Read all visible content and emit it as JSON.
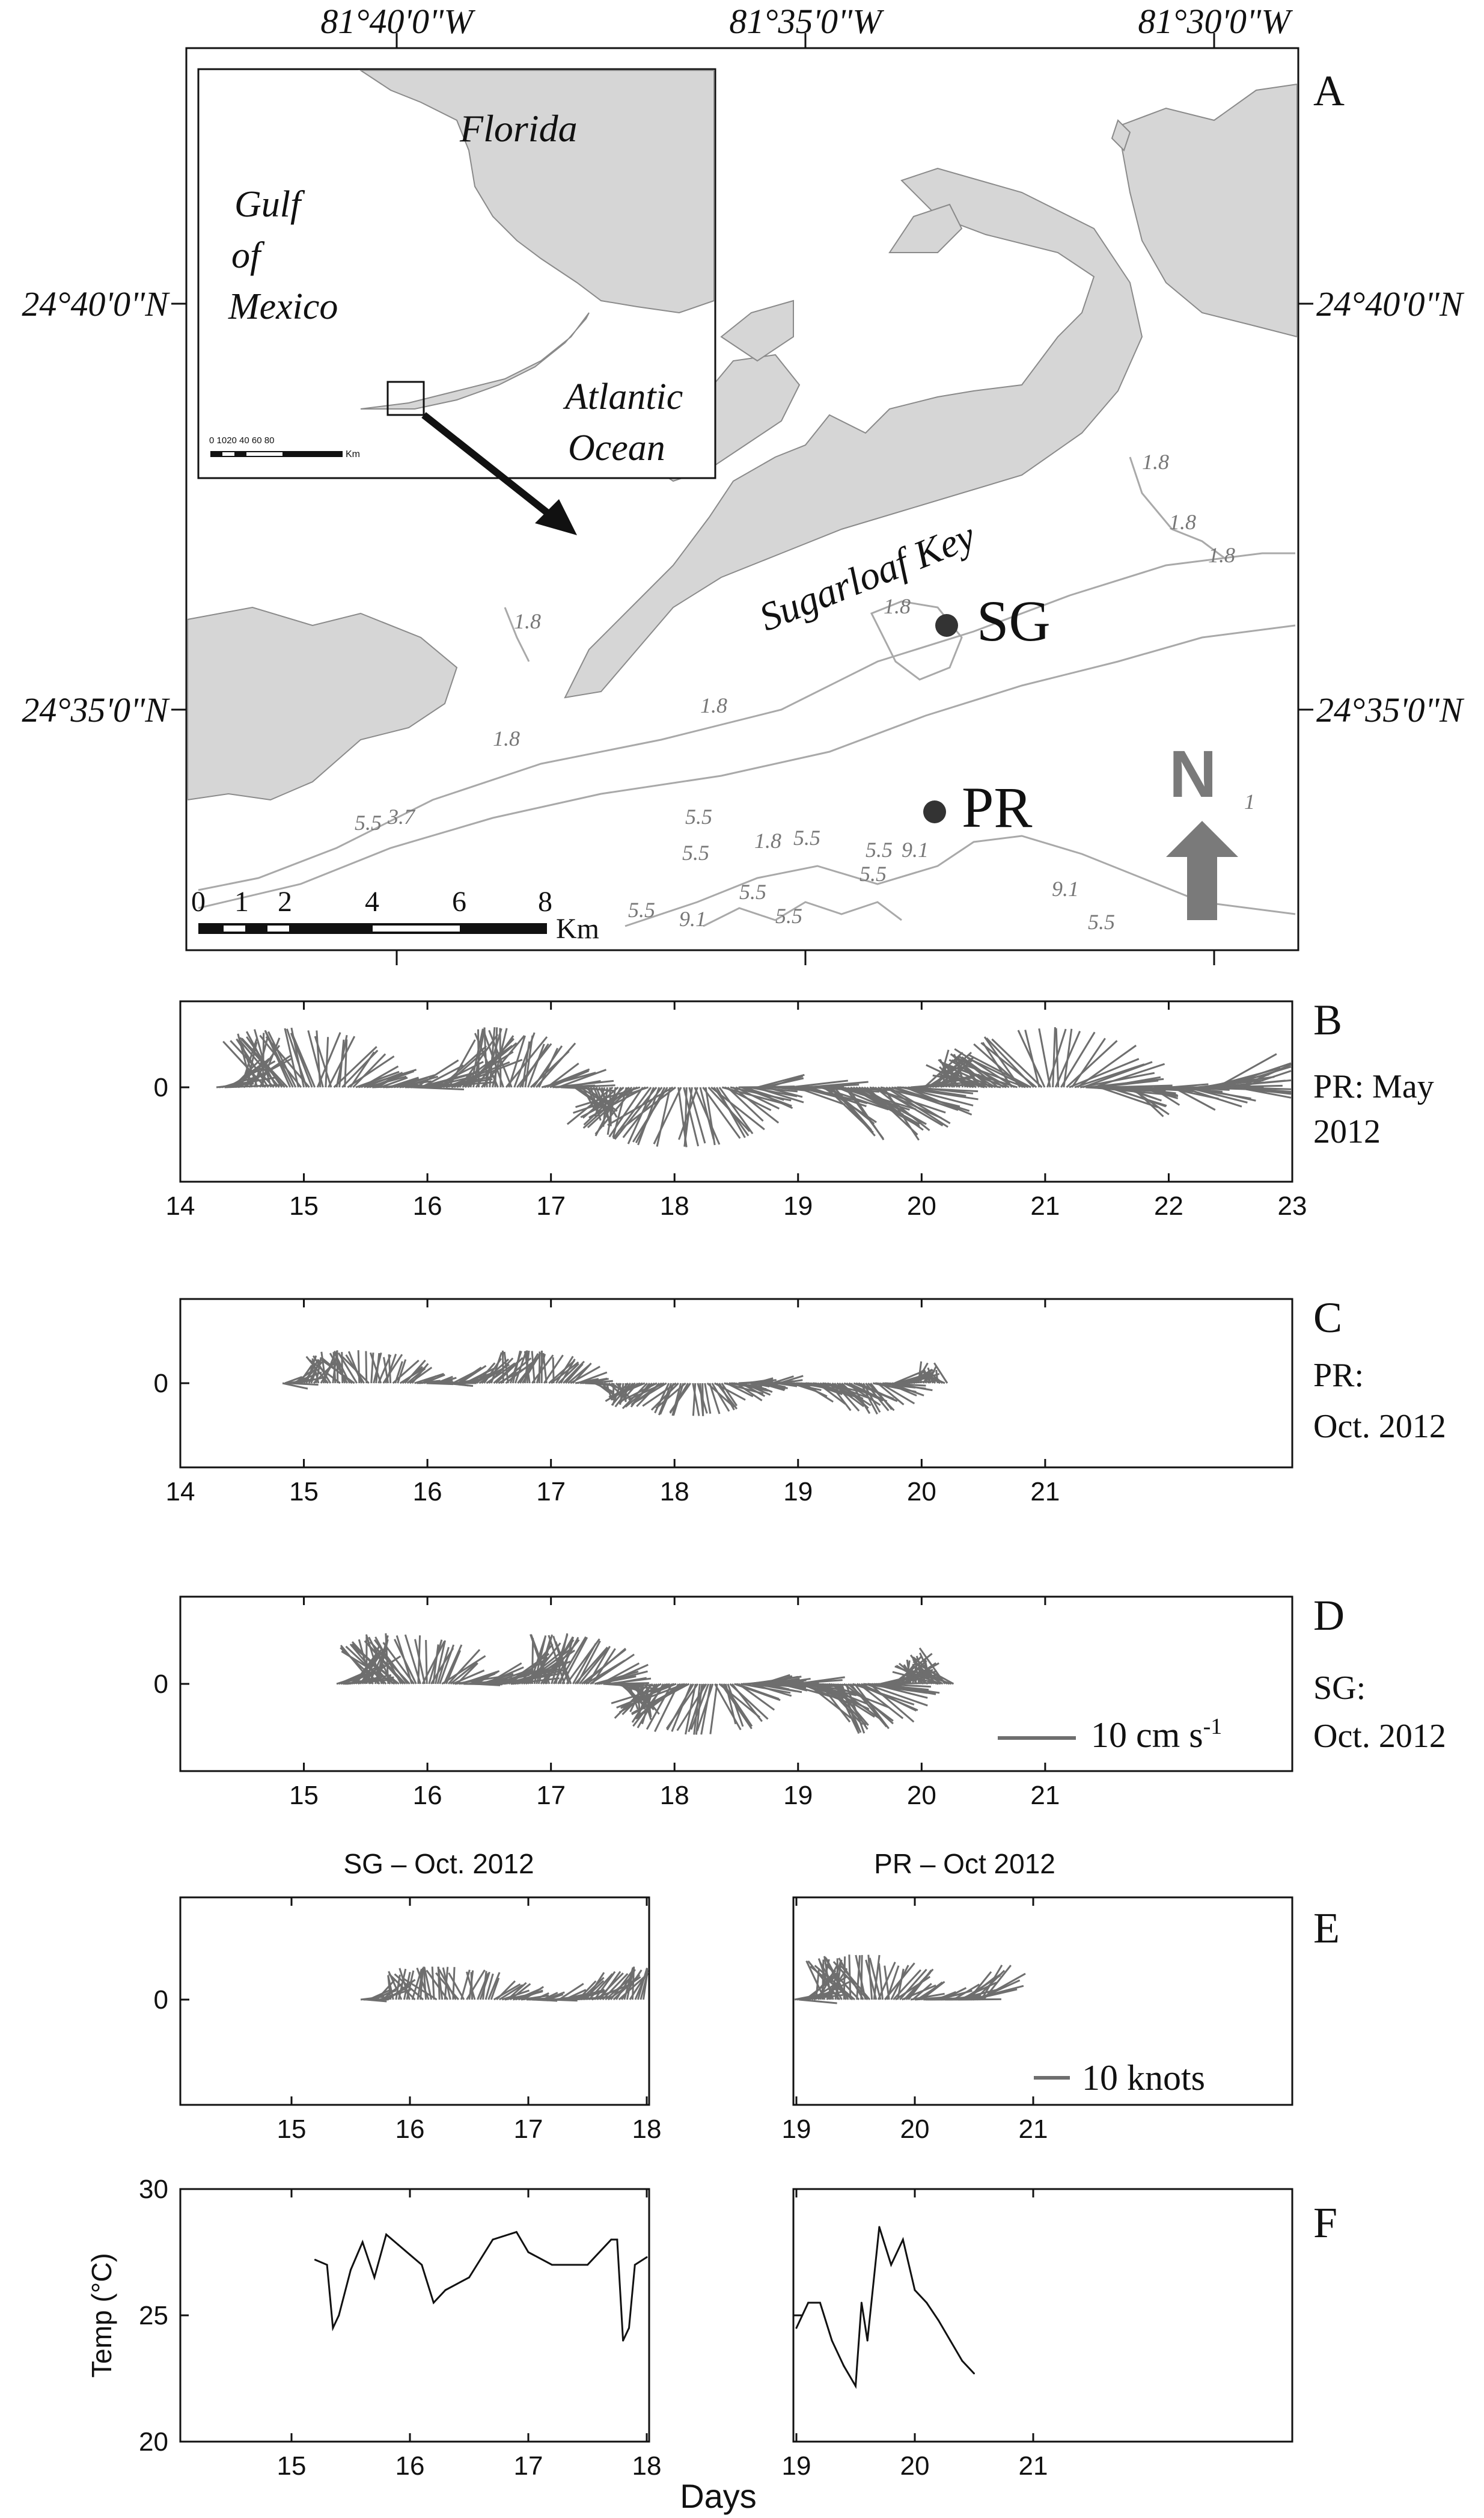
{
  "panel_a": {
    "letter": "A",
    "lon_labels": [
      "81°40'0\"W",
      "81°35'0\"W",
      "81°30'0\"W"
    ],
    "lat_labels": [
      "24°40'0\"N",
      "24°35'0\"N"
    ],
    "inset": {
      "florida": "Florida",
      "gulf_line1": "Gulf",
      "gulf_line2": "of",
      "gulf_line3": "Mexico",
      "atlantic_line1": "Atlantic",
      "atlantic_line2": "Ocean",
      "scale_labels": "0 1020    40    60    80",
      "scale_unit": "Km"
    },
    "sugarloaf": "Sugarloaf Key",
    "site_sg": "SG",
    "site_pr": "PR",
    "north": "N",
    "scale_ticks": [
      "0",
      "1",
      "2",
      "4",
      "6",
      "8"
    ],
    "scale_unit": "Km",
    "contours": [
      "1.8",
      "1.8",
      "1.8",
      "1.8",
      "1.8",
      "1.8",
      "1.8",
      "5.5",
      "3.7",
      "5.5",
      "5.5",
      "5.5",
      "1.8",
      "5.5",
      "5.5",
      "9.1",
      "5.5",
      "9.1",
      "9.1",
      "5.5",
      "1",
      "5.5",
      "5.5"
    ]
  },
  "panel_b": {
    "letter": "B",
    "note_line1": "PR: May",
    "note_line2": "2012",
    "x_ticks": [
      "14",
      "15",
      "16",
      "17",
      "18",
      "19",
      "20",
      "21",
      "22",
      "23"
    ]
  },
  "panel_c": {
    "letter": "C",
    "note_line1": "PR:",
    "note_line2": "Oct. 2012",
    "x_ticks": [
      "14",
      "15",
      "16",
      "17",
      "18",
      "19",
      "20",
      "21"
    ]
  },
  "panel_d": {
    "letter": "D",
    "note_line1": "SG:",
    "note_line2": "Oct. 2012",
    "x_ticks": [
      "15",
      "16",
      "17",
      "18",
      "19",
      "20",
      "21"
    ],
    "legend": "10 cm s",
    "legend_sup": "-1"
  },
  "panel_e": {
    "letter": "E",
    "title_left": "SG – Oct. 2012",
    "title_right": "PR – Oct 2012",
    "x_ticks_left": [
      "15",
      "16",
      "17",
      "18"
    ],
    "x_ticks_right": [
      "19",
      "20",
      "21"
    ],
    "legend": "10 knots"
  },
  "panel_f": {
    "letter": "F",
    "ylabel": "Temp (°C)",
    "y_ticks": [
      "30",
      "25",
      "20"
    ],
    "x_ticks_left": [
      "15",
      "16",
      "17",
      "18"
    ],
    "x_ticks_right": [
      "19",
      "20",
      "21"
    ],
    "xlabel": "Days"
  },
  "zero_label": "0",
  "colors": {
    "vector": "#6e6e6e",
    "land": "#d6d6d6",
    "contour": "#a9a9a9",
    "arrow": "#7a7a7a",
    "temp_line": "#111111"
  },
  "chart_data": [
    {
      "type": "line",
      "title": "",
      "ylabel": "Temp (°C)",
      "xlabel": "Days",
      "ylim": [
        20,
        30
      ],
      "series": [
        {
          "name": "SG – Oct. 2012",
          "x": [
            15.2,
            15.3,
            15.35,
            15.4,
            15.5,
            15.6,
            15.7,
            15.8,
            15.9,
            16.0,
            16.1,
            16.2,
            16.3,
            16.5,
            16.7,
            16.9,
            17.0,
            17.2,
            17.5,
            17.7,
            17.75,
            17.8,
            17.85,
            17.9,
            18.0
          ],
          "values": [
            27.2,
            27.0,
            24.5,
            25.0,
            26.8,
            27.9,
            26.5,
            28.2,
            27.8,
            27.4,
            27.0,
            25.5,
            26.0,
            26.5,
            28.0,
            28.3,
            27.5,
            27.0,
            27.0,
            28.0,
            28.0,
            24.0,
            24.5,
            27.0,
            27.3
          ]
        },
        {
          "name": "PR – Oct 2012",
          "x": [
            19.0,
            19.1,
            19.2,
            19.3,
            19.4,
            19.5,
            19.55,
            19.6,
            19.7,
            19.8,
            19.9,
            20.0,
            20.1,
            20.2,
            20.3,
            20.4,
            20.5
          ],
          "values": [
            24.5,
            25.5,
            25.5,
            24.0,
            23.0,
            22.2,
            25.5,
            24.0,
            28.5,
            27.0,
            28.0,
            26.0,
            25.5,
            24.8,
            24.0,
            23.2,
            22.7
          ]
        }
      ]
    }
  ]
}
